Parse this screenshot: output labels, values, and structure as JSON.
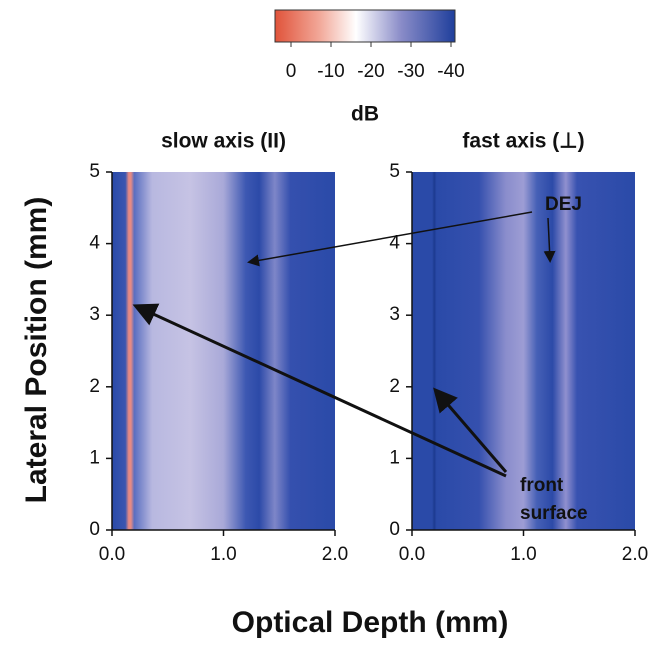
{
  "figure": {
    "y_label": "Lateral Position (mm)",
    "x_label": "Optical Depth (mm)",
    "colorbar": {
      "label": "dB",
      "lim": [
        4,
        -41
      ],
      "ticks": [
        0,
        -10,
        -20,
        -30,
        -40
      ]
    },
    "annotations": {
      "dej": "DEJ",
      "front_surface": [
        "front",
        "surface"
      ]
    }
  },
  "chart_data": [
    {
      "type": "image",
      "title": "slow axis (II)",
      "xlim": [
        0,
        2
      ],
      "ylim": [
        0,
        5
      ],
      "xticks": [
        {
          "value": 0,
          "label": "0.0"
        },
        {
          "value": 1,
          "label": "1.0"
        },
        {
          "value": 2,
          "label": "2.0"
        }
      ],
      "yticks": [
        0,
        1,
        2,
        3,
        4,
        5
      ]
    },
    {
      "type": "image",
      "title": "fast axis (⊥)",
      "xlim": [
        0,
        2
      ],
      "ylim": [
        0,
        5
      ],
      "xticks": [
        {
          "value": 0,
          "label": "0.0"
        },
        {
          "value": 1,
          "label": "1.0"
        },
        {
          "value": 2,
          "label": "2.0"
        }
      ],
      "yticks": [
        0,
        1,
        2,
        3,
        4,
        5
      ]
    }
  ]
}
